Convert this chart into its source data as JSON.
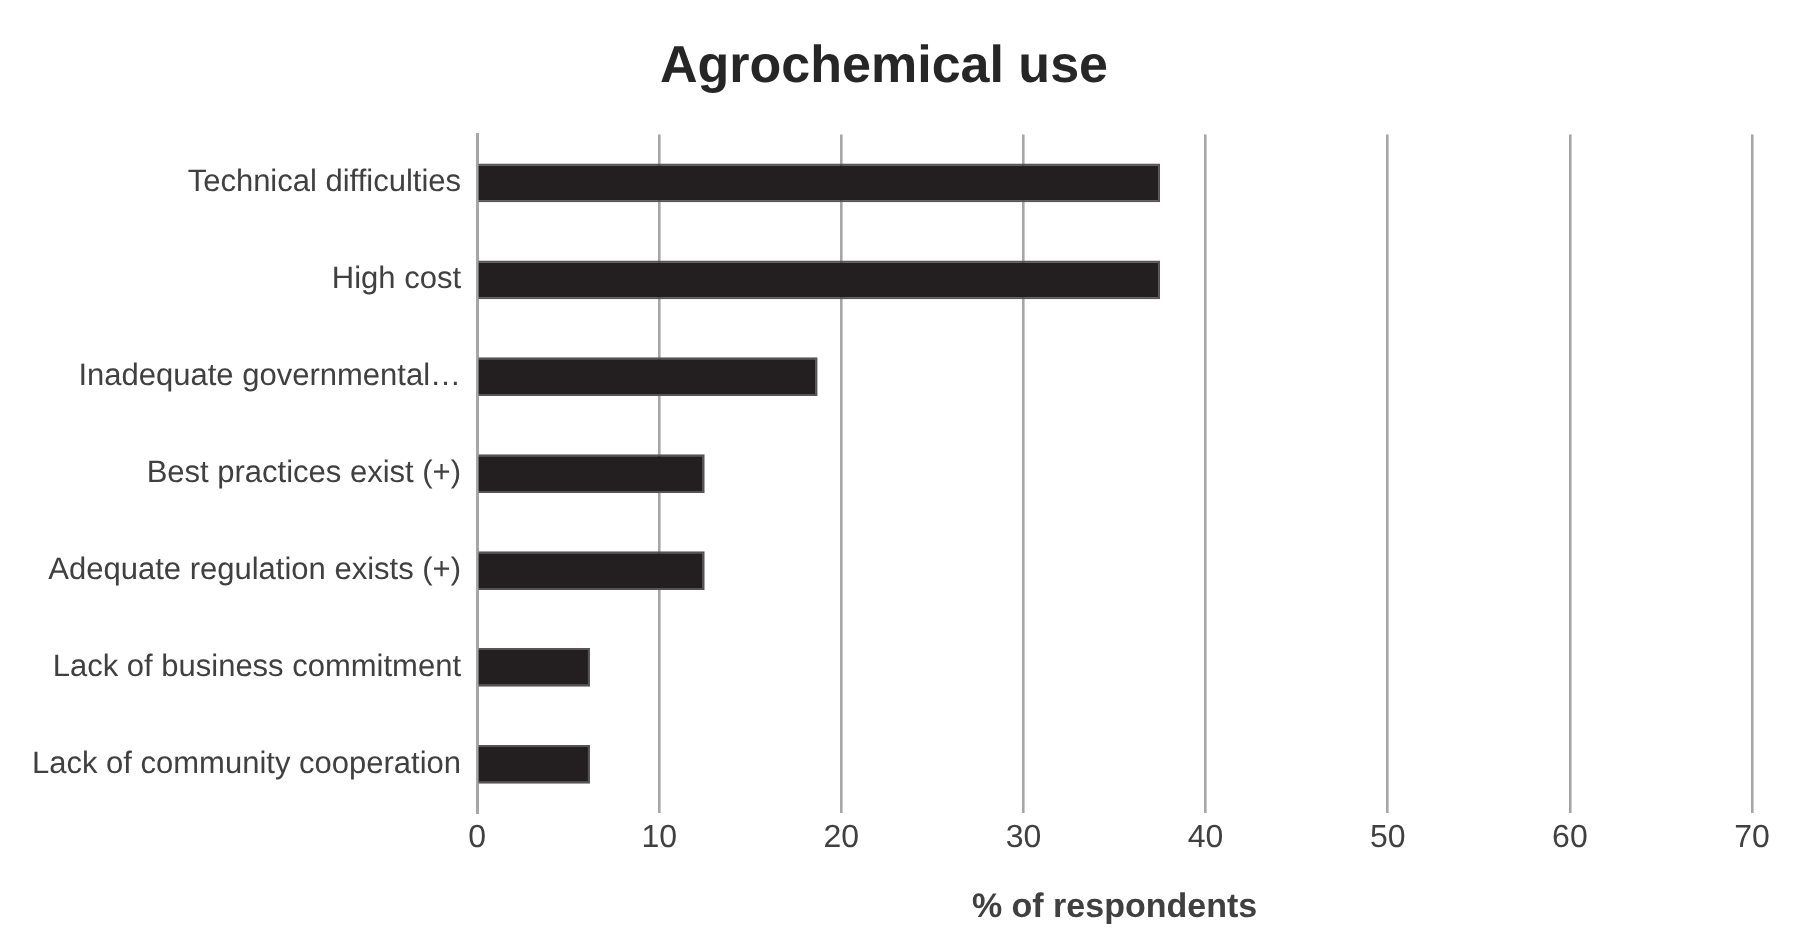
{
  "chart_data": {
    "type": "bar",
    "orientation": "horizontal",
    "title": "Agrochemical use",
    "xlabel": "% of respondents",
    "categories": [
      "Technical difficulties",
      "High cost",
      "Inadequate governmental…",
      "Best practices exist (+)",
      "Adequate regulation exists (+)",
      "Lack of business commitment",
      "Lack of community cooperation"
    ],
    "values": [
      37.5,
      37.5,
      18.7,
      12.5,
      12.5,
      6.2,
      6.2
    ],
    "color": "#231f20",
    "xlim": [
      0,
      70
    ],
    "xticks": [
      0,
      10,
      20,
      30,
      40,
      50,
      60,
      70
    ],
    "grid": "x",
    "legend": false
  }
}
